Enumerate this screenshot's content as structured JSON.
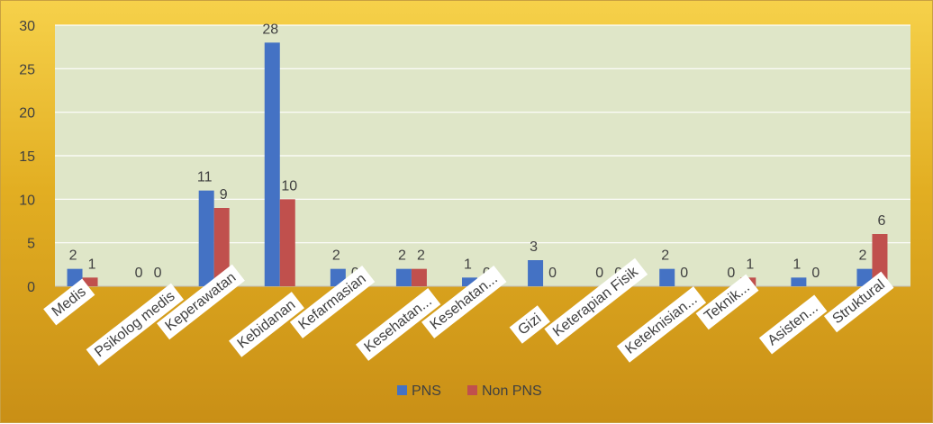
{
  "chart_data": {
    "type": "bar",
    "categories": [
      "Medis",
      "Psikolog medis",
      "Keperawatan",
      "Kebidanan",
      "Kefarmasian",
      "Kesehatan...",
      "Kesehatan...",
      "Gizi",
      "Keterapian Fisik",
      "Keteknisian...",
      "Teknik...",
      "Asisten...",
      "Struktural"
    ],
    "series": [
      {
        "name": "PNS",
        "values": [
          2,
          0,
          11,
          28,
          2,
          2,
          1,
          3,
          0,
          2,
          0,
          1,
          2
        ],
        "color": "#4472c4"
      },
      {
        "name": "Non PNS",
        "values": [
          1,
          0,
          9,
          10,
          0,
          2,
          0,
          0,
          0,
          0,
          1,
          0,
          6
        ],
        "color": "#c0504d"
      }
    ],
    "ylim": [
      0,
      30
    ],
    "yticks": [
      0,
      5,
      10,
      15,
      20,
      25,
      30
    ],
    "grid": true,
    "legend_position": "bottom",
    "plot_background": "#dfe6c8",
    "gridline_color": "#ffffff"
  }
}
